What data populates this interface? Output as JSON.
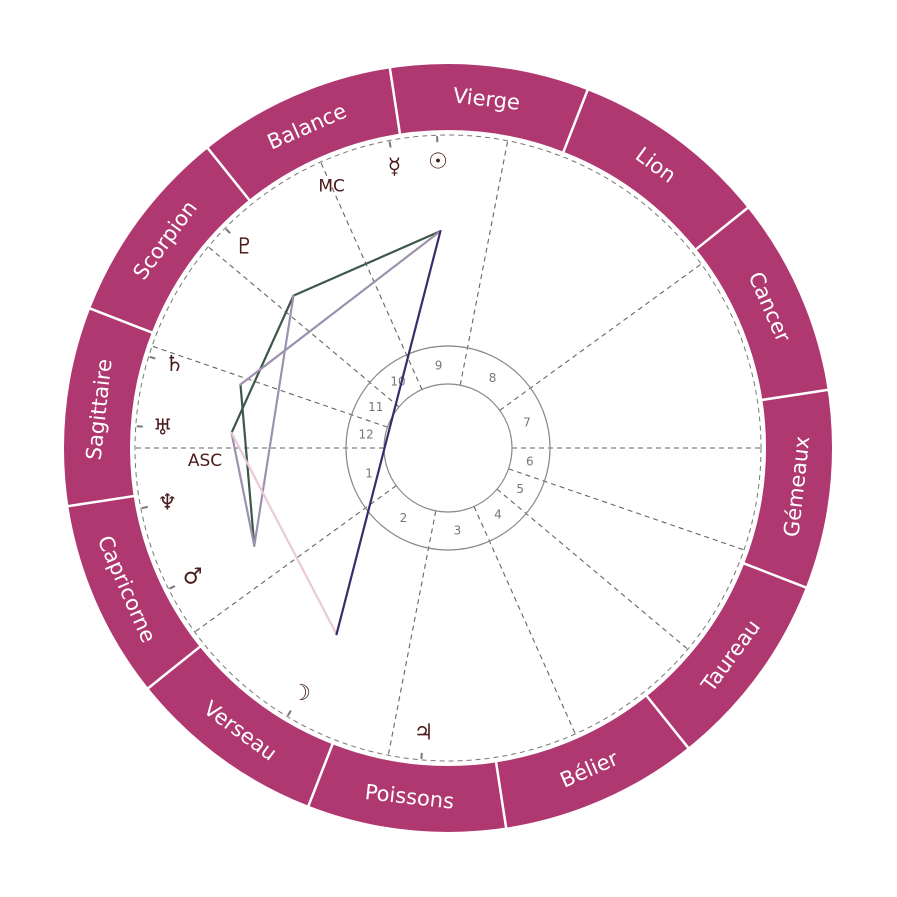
{
  "colors": {
    "zodiac_ring": "#b03870",
    "ring_separator": "#ffffff",
    "glyph": "#4a1c1c",
    "cusp_line": "#666666",
    "house_ring": "#888888",
    "aspect_green": "#3e5749",
    "aspect_lavender": "#9d92ae",
    "aspect_pink": "#ebc9d6",
    "aspect_purple": "#3d2a6a"
  },
  "zodiac_signs": [
    "Bélier",
    "Taureau",
    "Gémeaux",
    "Cancer",
    "Lion",
    "Vierge",
    "Balance",
    "Scorpion",
    "Sagittaire",
    "Capricorne",
    "Verseau",
    "Poissons"
  ],
  "house_cusps_longitude": [
    261.3,
    297.3,
    340.3,
    15.3,
    41.3,
    62.3,
    81.3,
    117.3,
    160.3,
    195.3,
    221.3,
    242.3
  ],
  "house_numbers": [
    "1",
    "2",
    "3",
    "4",
    "5",
    "6",
    "7",
    "8",
    "9",
    "10",
    "11",
    "12"
  ],
  "angles": [
    {
      "id": "asc",
      "label": "ASC",
      "longitude": 261.3
    },
    {
      "id": "mc",
      "label": "MC",
      "longitude": 195.3
    }
  ],
  "planets": [
    {
      "id": "sun",
      "icon": "sun-icon",
      "glyph": "☉",
      "longitude": 173.3
    },
    {
      "id": "mercury",
      "icon": "mercury-icon",
      "glyph": "☿",
      "longitude": 182.1
    },
    {
      "id": "pluto",
      "icon": "pluto-icon",
      "glyph": "♇",
      "longitude": 216.7
    },
    {
      "id": "saturn",
      "icon": "saturn-icon",
      "glyph": "♄",
      "longitude": 244.3
    },
    {
      "id": "uranus",
      "icon": "uranus-icon",
      "glyph": "♅",
      "longitude": 257.3
    },
    {
      "id": "neptune",
      "icon": "neptune-icon",
      "glyph": "♆",
      "longitude": 272.4
    },
    {
      "id": "mars",
      "icon": "mars-icon",
      "glyph": "♂",
      "longitude": 288.1
    },
    {
      "id": "moon",
      "icon": "moon-icon",
      "glyph": "☽",
      "longitude": 320.4
    },
    {
      "id": "jupiter",
      "icon": "jupiter-icon",
      "glyph": "♃",
      "longitude": 346.4
    }
  ],
  "aspects": [
    {
      "from": "sun",
      "to": "pluto",
      "color": "aspect_green"
    },
    {
      "from": "pluto",
      "to": "uranus",
      "color": "aspect_green"
    },
    {
      "from": "saturn",
      "to": "mars",
      "color": "aspect_green"
    },
    {
      "from": "sun",
      "to": "saturn",
      "color": "aspect_lavender"
    },
    {
      "from": "pluto",
      "to": "mars",
      "color": "aspect_lavender"
    },
    {
      "from": "uranus",
      "to": "mars",
      "color": "aspect_lavender"
    },
    {
      "from": "uranus",
      "to": "moon",
      "color": "aspect_pink"
    },
    {
      "from": "sun",
      "to": "moon",
      "color": "aspect_purple"
    }
  ]
}
